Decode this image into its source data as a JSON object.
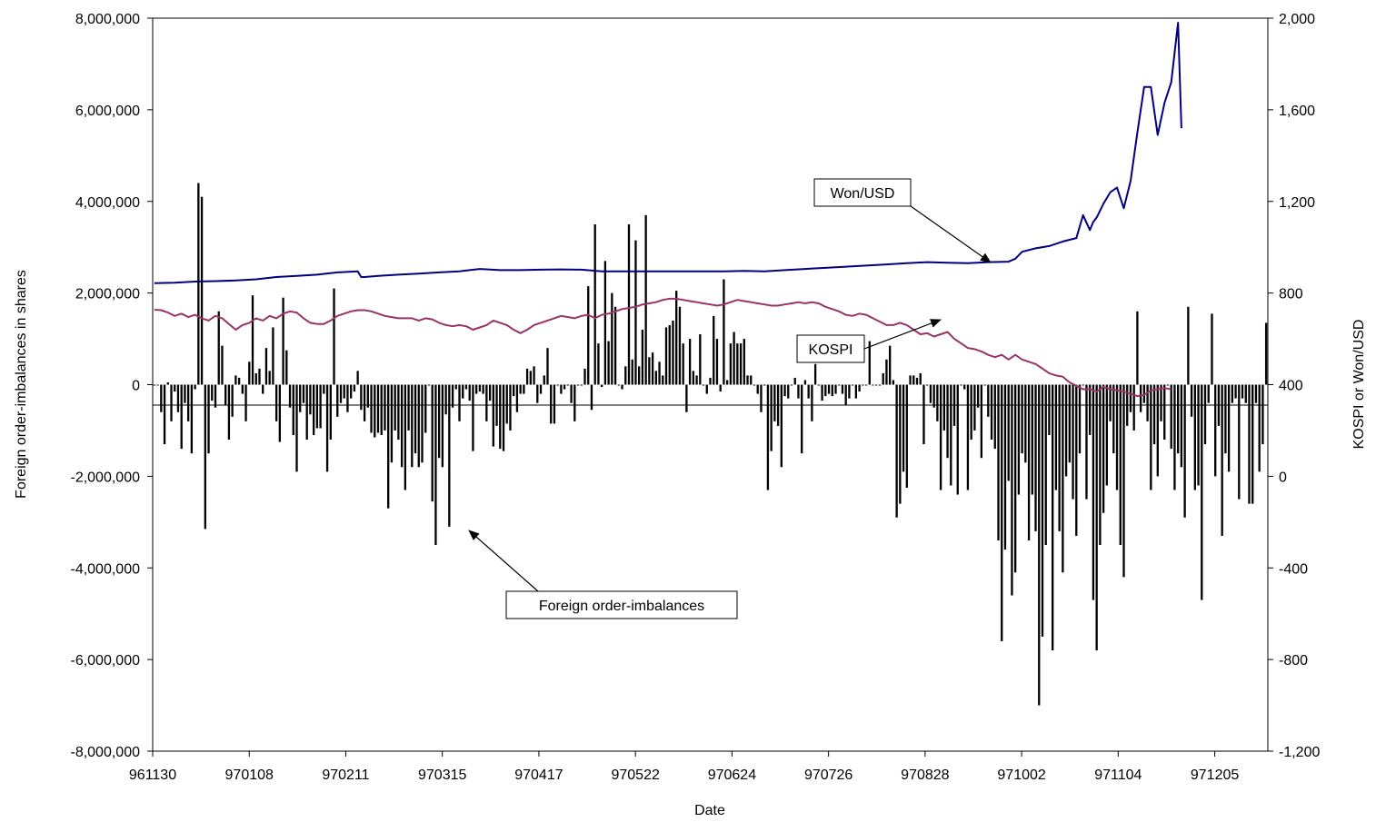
{
  "chart_data": {
    "type": "bar+line",
    "xlabel": "Date",
    "ylabel_left": "Foreign order-imbalances in shares",
    "ylabel_right": "KOSPI or Won/USD",
    "x_tick_labels": [
      "961130",
      "970108",
      "970211",
      "970315",
      "970417",
      "970522",
      "970624",
      "970726",
      "970828",
      "971002",
      "971104",
      "971205"
    ],
    "y_left": {
      "min": -8000000,
      "max": 8000000,
      "step": 2000000,
      "tick_labels": [
        "-8,000,000",
        "-6,000,000",
        "-4,000,000",
        "-2,000,000",
        "0",
        "2,000,000",
        "4,000,000",
        "6,000,000",
        "8,000,000"
      ]
    },
    "y_right": {
      "min": -1200,
      "max": 2000,
      "step": 400,
      "tick_labels": [
        "-1,200",
        "-800",
        "-400",
        "0",
        "400",
        "800",
        "1,200",
        "1,600",
        "2,000"
      ]
    },
    "grid": false,
    "legend": "none",
    "series": [
      {
        "name": "Foreign order-imbalances",
        "type": "bar",
        "axis": "left",
        "color": "#000000",
        "values": [
          0,
          0,
          -600000,
          -1300000,
          50000,
          -800000,
          -150000,
          -600000,
          -1400000,
          -400000,
          -800000,
          -1500000,
          -100000,
          4400000,
          4100000,
          -3150000,
          -1500000,
          -350000,
          -500000,
          1600000,
          850000,
          -450000,
          -1200000,
          -700000,
          200000,
          150000,
          -200000,
          -800000,
          500000,
          1950000,
          250000,
          350000,
          -200000,
          800000,
          300000,
          1250000,
          -800000,
          -1250000,
          1900000,
          750000,
          -500000,
          -1100000,
          -1900000,
          -600000,
          -400000,
          -1200000,
          -650000,
          -1100000,
          -950000,
          -950000,
          -200000,
          -1900000,
          -1200000,
          2100000,
          -700000,
          -400000,
          -300000,
          -600000,
          -300000,
          -150000,
          300000,
          -550000,
          -800000,
          -500000,
          -1050000,
          -1150000,
          -1050000,
          -1100000,
          -1000000,
          -2700000,
          -1700000,
          -1000000,
          -1200000,
          -1800000,
          -2300000,
          -1000000,
          -1800000,
          -1500000,
          -1800000,
          -1700000,
          -1050000,
          0,
          -2550000,
          -3500000,
          -1600000,
          -1800000,
          -650000,
          -3100000,
          -500000,
          -100000,
          -800000,
          -300000,
          -100000,
          -350000,
          -1450000,
          -200000,
          -150000,
          -200000,
          -800000,
          -350000,
          -1350000,
          -900000,
          -1400000,
          -1450000,
          -850000,
          -1000000,
          -250000,
          -600000,
          -200000,
          -200000,
          350000,
          300000,
          400000,
          -400000,
          -200000,
          200000,
          800000,
          -850000,
          -850000,
          0,
          -200000,
          -100000,
          0,
          -400000,
          -800000,
          0,
          0,
          350000,
          2150000,
          -550000,
          3500000,
          900000,
          -50000,
          2700000,
          950000,
          2000000,
          1700000,
          0,
          -100000,
          400000,
          3500000,
          550000,
          3150000,
          400000,
          1200000,
          3700000,
          600000,
          700000,
          300000,
          500000,
          200000,
          1250000,
          1300000,
          1400000,
          2050000,
          1700000,
          900000,
          -600000,
          1000000,
          300000,
          200000,
          1100000,
          0,
          -200000,
          150000,
          1500000,
          1000000,
          -150000,
          2300000,
          100000,
          900000,
          1150000,
          900000,
          900000,
          1000000,
          200000,
          200000,
          0,
          -200000,
          -600000,
          0,
          -2300000,
          -1450000,
          -800000,
          -900000,
          -1800000,
          -250000,
          -300000,
          0,
          150000,
          -300000,
          -1500000,
          100000,
          -300000,
          -800000,
          450000,
          0,
          -350000,
          -250000,
          -200000,
          -250000,
          -200000,
          0,
          -200000,
          -450000,
          -300000,
          0,
          -300000,
          -150000,
          0,
          0,
          950000,
          0,
          0,
          0,
          250000,
          550000,
          850000,
          100000,
          -2900000,
          -2600000,
          -1900000,
          -2250000,
          200000,
          200000,
          150000,
          250000,
          -1300000,
          0,
          -400000,
          -500000,
          -800000,
          -2300000,
          -1000000,
          -1600000,
          -2200000,
          -900000,
          -2400000,
          0,
          -100000,
          -2300000,
          -1200000,
          -1000000,
          -500000,
          -1600000,
          0,
          -700000,
          -1200000,
          -1400000,
          -3400000,
          -5600000,
          -3600000,
          -2100000,
          -4600000,
          -4100000,
          -2400000,
          -1500000,
          -1700000,
          -3400000,
          -2400000,
          -3200000,
          -7000000,
          -5500000,
          -3500000,
          -1100000,
          -5800000,
          -2300000,
          -3200000,
          -4100000,
          -2000000,
          -1700000,
          -2500000,
          -3300000,
          -1500000,
          0,
          -2500000,
          -1100000,
          -4700000,
          -5800000,
          -3500000,
          -2800000,
          -2200000,
          -800000,
          -1500000,
          -2300000,
          -3500000,
          -4200000,
          -900000,
          -600000,
          -1000000,
          1600000,
          -600000,
          -400000,
          -800000,
          -2300000,
          -1300000,
          -2000000,
          -800000,
          -1200000,
          0,
          -1400000,
          -2300000,
          -1500000,
          -1800000,
          -2900000,
          1700000,
          -700000,
          -2300000,
          -2200000,
          -4700000,
          -1300000,
          -400000,
          1550000,
          -2000000,
          -900000,
          -3300000,
          -1500000,
          -1900000,
          -400000,
          -300000,
          -2500000,
          -300000,
          -400000,
          -2600000,
          -2600000,
          -400000,
          -1900000,
          -1300000,
          1350000
        ]
      },
      {
        "name": "KOSPI",
        "type": "line",
        "axis": "right",
        "color": "#993366",
        "x": [
          0,
          2,
          4,
          6,
          8,
          10,
          12,
          14,
          16,
          18,
          20,
          22,
          24,
          26,
          28,
          30,
          32,
          34,
          36,
          38,
          40,
          42,
          44,
          46,
          48,
          50,
          52,
          54,
          56,
          58,
          60,
          62,
          64,
          66,
          68,
          70,
          72,
          74,
          76,
          78,
          80,
          82,
          84,
          86,
          88,
          90,
          92,
          94,
          96,
          98,
          100,
          102,
          104,
          106,
          108,
          110,
          112,
          114,
          116,
          118,
          120,
          122,
          124,
          126,
          128,
          130,
          132,
          134,
          136,
          138,
          140,
          142,
          144,
          146,
          148,
          150,
          152,
          154,
          156,
          158,
          160,
          162,
          164,
          166,
          168,
          170,
          172,
          174,
          176,
          178,
          180,
          182,
          184,
          186,
          188,
          190,
          192,
          194,
          196,
          198,
          200,
          202,
          204,
          206,
          208,
          210,
          212,
          214,
          216,
          218,
          220,
          222,
          224,
          226,
          228,
          230,
          232,
          234,
          236,
          238,
          240,
          242,
          244,
          246,
          248,
          250,
          252,
          254,
          256,
          258,
          260,
          262,
          264,
          266,
          268,
          270,
          272,
          274,
          276,
          278,
          280,
          282,
          284,
          286,
          288,
          290,
          292,
          294,
          296,
          298,
          300
        ],
        "values": [
          727,
          725,
          715,
          700,
          710,
          695,
          705,
          690,
          680,
          700,
          690,
          665,
          640,
          660,
          670,
          690,
          680,
          700,
          690,
          710,
          720,
          715,
          690,
          670,
          665,
          665,
          680,
          700,
          710,
          720,
          725,
          725,
          720,
          710,
          700,
          695,
          690,
          690,
          690,
          680,
          690,
          685,
          670,
          660,
          655,
          660,
          655,
          640,
          650,
          660,
          680,
          670,
          660,
          640,
          625,
          640,
          660,
          670,
          680,
          690,
          700,
          695,
          690,
          700,
          705,
          690,
          705,
          710,
          720,
          730,
          735,
          740,
          750,
          755,
          760,
          770,
          775,
          775,
          770,
          765,
          760,
          755,
          750,
          745,
          750,
          760,
          770,
          765,
          760,
          755,
          750,
          745,
          745,
          750,
          755,
          760,
          755,
          760,
          755,
          740,
          730,
          720,
          705,
          700,
          710,
          705,
          690,
          675,
          660,
          660,
          670,
          660,
          640,
          620,
          625,
          610,
          620,
          630,
          600,
          580,
          560,
          555,
          545,
          530,
          520,
          530,
          510,
          530,
          510,
          500,
          490,
          470,
          450,
          440,
          435,
          410,
          395,
          380,
          380,
          370,
          390,
          380,
          375,
          370,
          360,
          350,
          355,
          375,
          380,
          385,
          380
        ]
      },
      {
        "name": "Won/USD",
        "type": "line",
        "axis": "right",
        "color": "#000080",
        "x": [
          0,
          6,
          12,
          18,
          24,
          30,
          36,
          42,
          48,
          54,
          60,
          61,
          62,
          66,
          72,
          78,
          84,
          90,
          96,
          102,
          108,
          114,
          120,
          126,
          132,
          138,
          144,
          150,
          156,
          162,
          168,
          174,
          180,
          186,
          192,
          198,
          204,
          210,
          216,
          222,
          228,
          234,
          240,
          246,
          252,
          254,
          256,
          260,
          264,
          268,
          272,
          274,
          276,
          277,
          278,
          280,
          282,
          284,
          286,
          288,
          290,
          292,
          294,
          296,
          298,
          300,
          302,
          303
        ],
        "values": [
          843,
          845,
          850,
          852,
          855,
          860,
          870,
          875,
          880,
          890,
          895,
          870,
          870,
          875,
          880,
          885,
          890,
          895,
          905,
          900,
          900,
          902,
          903,
          902,
          895,
          895,
          895,
          895,
          895,
          895,
          895,
          897,
          895,
          900,
          905,
          910,
          915,
          920,
          925,
          930,
          935,
          932,
          930,
          935,
          937,
          950,
          980,
          995,
          1005,
          1025,
          1040,
          1140,
          1075,
          1110,
          1130,
          1190,
          1240,
          1260,
          1170,
          1290,
          1500,
          1700,
          1700,
          1490,
          1630,
          1720,
          1980,
          1520
        ]
      }
    ],
    "annotations": [
      {
        "text": "Won/USD",
        "target": "Won/USD"
      },
      {
        "text": "KOSPI",
        "target": "KOSPI"
      },
      {
        "text": "Foreign order-imbalances",
        "target": "Foreign order-imbalances"
      }
    ]
  }
}
